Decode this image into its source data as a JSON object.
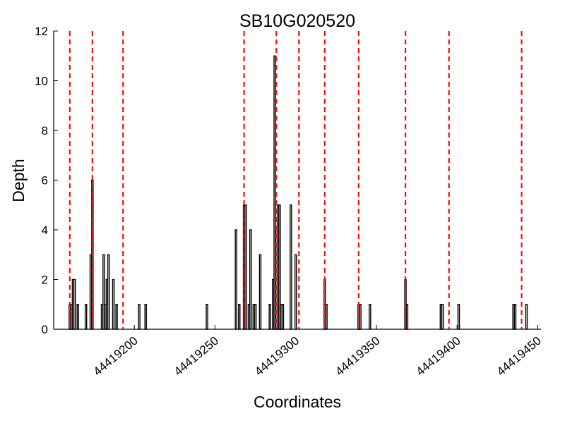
{
  "chart_data": {
    "type": "bar",
    "title": "SB10G020520",
    "xlabel": "Coordinates",
    "ylabel": "Depth",
    "xlim": [
      44419150,
      44419452
    ],
    "ylim": [
      0,
      12
    ],
    "x_ticks": [
      44419200,
      44419250,
      44419300,
      44419350,
      44419400,
      44419450
    ],
    "x_tick_labels": [
      "44419200",
      "44419250",
      "44419300",
      "44419350",
      "44419400",
      "44419450"
    ],
    "y_ticks": [
      0,
      2,
      4,
      6,
      8,
      10,
      12
    ],
    "y_tick_labels": [
      "0",
      "2",
      "4",
      "6",
      "8",
      "10",
      "12"
    ],
    "grid": false,
    "legend": "none",
    "bar_color": "#000000",
    "line_color": "#ee1111",
    "x": [
      44419160,
      44419161,
      44419162,
      44419163,
      44419165,
      44419170,
      44419173,
      44419174,
      44419180,
      44419181,
      44419182,
      44419183,
      44419184,
      44419187,
      44419189,
      44419203,
      44419207,
      44419245,
      44419263,
      44419265,
      44419268,
      44419269,
      44419271,
      44419272,
      44419274,
      44419275,
      44419278,
      44419284,
      44419286,
      44419287,
      44419288,
      44419289,
      44419290,
      44419291,
      44419292,
      44419297,
      44419300,
      44419318,
      44419319,
      44419339,
      44419340,
      44419346,
      44419368,
      44419369,
      44419390,
      44419391,
      44419401,
      44419435,
      44419436,
      44419443
    ],
    "values": [
      1,
      1,
      2,
      2,
      1,
      1,
      3,
      6,
      1,
      3,
      1,
      2,
      3,
      2,
      1,
      1,
      1,
      1,
      4,
      1,
      5,
      5,
      1,
      4,
      1,
      1,
      3,
      1,
      2,
      11,
      4,
      5,
      5,
      1,
      1,
      5,
      3,
      2,
      1,
      1,
      1,
      1,
      2,
      1,
      1,
      1,
      1,
      1,
      1,
      1
    ],
    "vlines": [
      44419160,
      44419174,
      44419193,
      44419268,
      44419288,
      44419302,
      44419318,
      44419339,
      44419368,
      44419395,
      44419440
    ]
  }
}
